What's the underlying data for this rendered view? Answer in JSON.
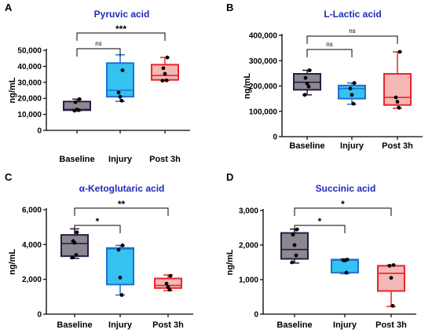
{
  "chart_data": [
    {
      "panel_letter": "A",
      "type": "box",
      "title": "Pyruvic acid",
      "ylabel": "ng/mL",
      "ylim": [
        0,
        50000
      ],
      "yticks": [
        0,
        10000,
        20000,
        30000,
        40000,
        50000
      ],
      "ytick_labels": [
        "0",
        "10,000",
        "20,000",
        "30,000",
        "40,000",
        "50,000"
      ],
      "categories": [
        "Baseline",
        "Injury",
        "Post 3h"
      ],
      "series": [
        {
          "category": "Baseline",
          "color": "#8B8890",
          "edge_color": "#2E1A47",
          "min": 12300,
          "q1": 12600,
          "median": 13000,
          "q3": 18000,
          "max": 19500,
          "points": [
            19500,
            17600,
            13000,
            12600,
            12300
          ]
        },
        {
          "category": "Injury",
          "color": "#35C2F0",
          "edge_color": "#1F6FD0",
          "min": 18100,
          "q1": 21000,
          "median": 25000,
          "q3": 42000,
          "max": 47200,
          "points": [
            37500,
            23600,
            21000,
            18500
          ]
        },
        {
          "category": "Post 3h",
          "color": "#F4B8B6",
          "edge_color": "#E8262C",
          "min": 31000,
          "q1": 31500,
          "median": 34200,
          "q3": 41000,
          "max": 45500,
          "points": [
            45500,
            38800,
            35300,
            31200,
            31000
          ]
        }
      ],
      "comparisons": [
        {
          "from": "Baseline",
          "to": "Injury",
          "label": "ns"
        },
        {
          "from": "Baseline",
          "to": "Post 3h",
          "label": "***"
        }
      ]
    },
    {
      "panel_letter": "B",
      "type": "box",
      "title": "L-Lactic acid",
      "ylabel": "ng/mL",
      "ylim": [
        0,
        400000
      ],
      "yticks": [
        0,
        100000,
        200000,
        300000,
        400000
      ],
      "ytick_labels": [
        "0",
        "100,000",
        "200,000",
        "300,000",
        "400,000"
      ],
      "categories": [
        "Baseline",
        "Injury",
        "Post 3h"
      ],
      "series": [
        {
          "category": "Baseline",
          "color": "#8B8890",
          "edge_color": "#2E1A47",
          "min": 165000,
          "q1": 185000,
          "median": 215000,
          "q3": 248000,
          "max": 262000,
          "points": [
            262000,
            232000,
            210000,
            198000,
            165000
          ]
        },
        {
          "category": "Injury",
          "color": "#35C2F0",
          "edge_color": "#1F6FD0",
          "min": 128000,
          "q1": 150000,
          "median": 190000,
          "q3": 202000,
          "max": 212000,
          "points": [
            212000,
            190000,
            165000,
            130000
          ]
        },
        {
          "category": "Post 3h",
          "color": "#F4B8B6",
          "edge_color": "#E8262C",
          "min": 112000,
          "q1": 125000,
          "median": 155000,
          "q3": 248000,
          "max": 335000,
          "points": [
            335000,
            155000,
            138000,
            114000
          ]
        }
      ],
      "comparisons": [
        {
          "from": "Baseline",
          "to": "Injury",
          "label": "ns"
        },
        {
          "from": "Baseline",
          "to": "Post 3h",
          "label": "ns"
        }
      ]
    },
    {
      "panel_letter": "C",
      "type": "box",
      "title": "α-Ketoglutaric acid",
      "ylabel": "ng/mL",
      "ylim": [
        0,
        6000
      ],
      "yticks": [
        0,
        2000,
        4000,
        6000
      ],
      "ytick_labels": [
        "0",
        "2,000",
        "4,000",
        "6,000"
      ],
      "categories": [
        "Baseline",
        "Injury",
        "Post 3h"
      ],
      "series": [
        {
          "category": "Baseline",
          "color": "#8B8890",
          "edge_color": "#2E1A47",
          "min": 3200,
          "q1": 3330,
          "median": 4050,
          "q3": 4550,
          "max": 4900,
          "points": [
            4700,
            4200,
            4100,
            3400,
            3250
          ]
        },
        {
          "category": "Injury",
          "color": "#35C2F0",
          "edge_color": "#1F6FD0",
          "min": 1100,
          "q1": 1700,
          "median": 3750,
          "q3": 3800,
          "max": 3950,
          "points": [
            3950,
            3700,
            2100,
            1100
          ]
        },
        {
          "category": "Post 3h",
          "color": "#F4B8B6",
          "edge_color": "#E8262C",
          "min": 1350,
          "q1": 1500,
          "median": 1650,
          "q3": 2050,
          "max": 2250,
          "points": [
            2200,
            1750,
            1550,
            1400
          ]
        }
      ],
      "comparisons": [
        {
          "from": "Baseline",
          "to": "Injury",
          "label": "*"
        },
        {
          "from": "Baseline",
          "to": "Post 3h",
          "label": "**"
        }
      ]
    },
    {
      "panel_letter": "D",
      "type": "box",
      "title": "Succinic acid",
      "ylabel": "ng/mL",
      "ylim": [
        0,
        3000
      ],
      "yticks": [
        0,
        1000,
        2000,
        3000
      ],
      "ytick_labels": [
        "0",
        "1,000",
        "2,000",
        "3,000"
      ],
      "categories": [
        "Baseline",
        "Injury",
        "Post 3h"
      ],
      "series": [
        {
          "category": "Baseline",
          "color": "#8B8890",
          "edge_color": "#2E1A47",
          "min": 1480,
          "q1": 1600,
          "median": 1870,
          "q3": 2350,
          "max": 2460,
          "points": [
            2450,
            2300,
            2000,
            1700,
            1500
          ]
        },
        {
          "category": "Injury",
          "color": "#35C2F0",
          "edge_color": "#1F6FD0",
          "min": 1170,
          "q1": 1200,
          "median": 1560,
          "q3": 1580,
          "max": 1600,
          "points": [
            1580,
            1560,
            1550,
            1200
          ]
        },
        {
          "category": "Post 3h",
          "color": "#F4B8B6",
          "edge_color": "#E8262C",
          "min": 220,
          "q1": 670,
          "median": 1180,
          "q3": 1400,
          "max": 1420,
          "points": [
            1420,
            1400,
            1050,
            240
          ]
        }
      ],
      "comparisons": [
        {
          "from": "Baseline",
          "to": "Injury",
          "label": "*"
        },
        {
          "from": "Baseline",
          "to": "Post 3h",
          "label": "*"
        }
      ]
    }
  ]
}
